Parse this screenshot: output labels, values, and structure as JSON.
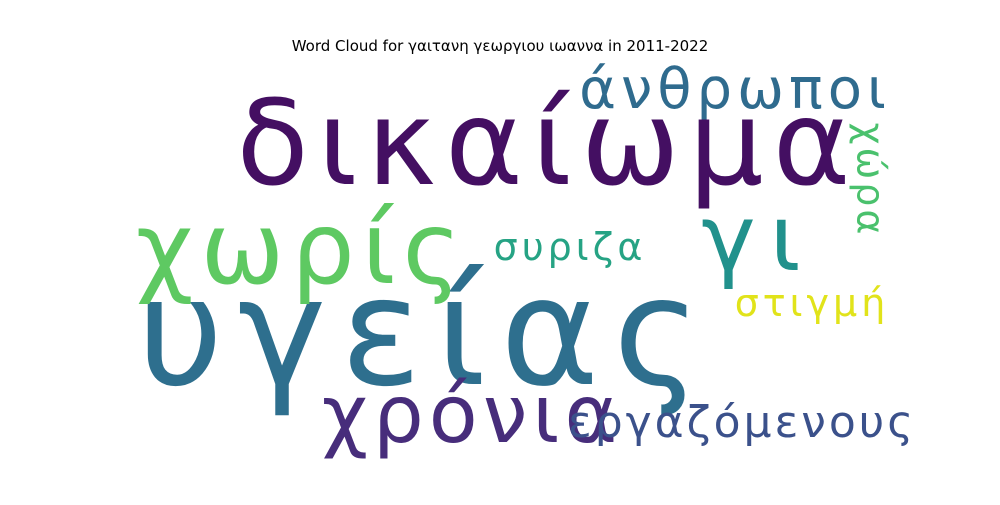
{
  "chart_data": {
    "type": "wordcloud",
    "title": "Word Cloud for γαιτανη γεωργιου ιωαννα in 2011-2022",
    "words": [
      {
        "text": "δικαίωμα",
        "color": "#440f62"
      },
      {
        "text": "υγείας",
        "color": "#2e6f8e"
      },
      {
        "text": "χωρίς",
        "color": "#5ec962"
      },
      {
        "text": "γι",
        "color": "#21918c"
      },
      {
        "text": "χρόνια",
        "color": "#472d7b"
      },
      {
        "text": "άνθρωποι",
        "color": "#2f6b8e"
      },
      {
        "text": "εργαζόμενους",
        "color": "#3b518b"
      },
      {
        "text": "συριζα",
        "color": "#26a384"
      },
      {
        "text": "στιγμή",
        "color": "#e1e31a"
      },
      {
        "text": "χώρα",
        "color": "#4ac16d",
        "rotated": true
      }
    ]
  }
}
